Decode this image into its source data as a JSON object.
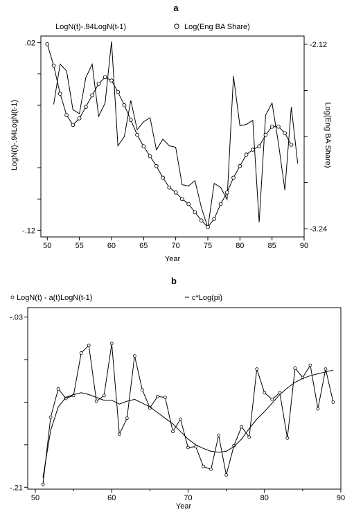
{
  "chart_data": [
    {
      "panel_label": "a",
      "type": "line",
      "xlabel": "Year",
      "ylabel_left": "LogN(t)-.94LogN(t-1)",
      "ylabel_right": "Log(Eng BA Share)",
      "xlim": [
        49,
        90
      ],
      "ylim_left": [
        -0.125,
        0.025
      ],
      "ylim_right": [
        -3.29,
        -2.07
      ],
      "x_ticks": [
        "50",
        "55",
        "60",
        "65",
        "70",
        "75",
        "80",
        "85",
        "90"
      ],
      "y_ticks_left": [
        ".02",
        "-.12"
      ],
      "y_ticks_right": [
        "-2.12",
        "-3.24"
      ],
      "legend": {
        "placement": "top",
        "entries": [
          "LogN(t)-.94LogN(t-1)",
          "Log(Eng BA Share)"
        ]
      },
      "grid": false,
      "series": [
        {
          "name": "LogN(t)-.94LogN(t-1)",
          "marker": "none",
          "axis": "left",
          "x": [
            51,
            52,
            53,
            54,
            55,
            56,
            57,
            58,
            59,
            60,
            61,
            62,
            63,
            64,
            65,
            66,
            67,
            68,
            69,
            70,
            71,
            72,
            73,
            74,
            75,
            76,
            77,
            78,
            79,
            80,
            81,
            82,
            83,
            84,
            85,
            86,
            87,
            88,
            89
          ],
          "y": [
            -0.026,
            0.004,
            -0.001,
            -0.03,
            -0.033,
            -0.006,
            0.004,
            -0.035,
            -0.025,
            0.021,
            -0.057,
            -0.05,
            -0.023,
            -0.045,
            -0.039,
            -0.036,
            -0.06,
            -0.052,
            -0.057,
            -0.058,
            -0.086,
            -0.087,
            -0.083,
            -0.103,
            -0.118,
            -0.085,
            -0.088,
            -0.097,
            -0.005,
            -0.042,
            -0.041,
            -0.038,
            -0.114,
            -0.034,
            -0.025,
            -0.055,
            -0.09,
            -0.028,
            -0.07
          ]
        },
        {
          "name": "Log(Eng BA Share)",
          "marker": "circle",
          "axis": "right",
          "x": [
            50,
            51,
            52,
            53,
            54,
            55,
            56,
            57,
            58,
            59,
            60,
            61,
            62,
            63,
            64,
            65,
            66,
            67,
            68,
            69,
            70,
            71,
            72,
            73,
            74,
            75,
            76,
            77,
            78,
            79,
            80,
            81,
            82,
            83,
            84,
            85,
            86,
            87,
            88
          ],
          "y": [
            -2.12,
            -2.25,
            -2.42,
            -2.55,
            -2.61,
            -2.57,
            -2.5,
            -2.43,
            -2.36,
            -2.32,
            -2.34,
            -2.41,
            -2.49,
            -2.58,
            -2.67,
            -2.74,
            -2.8,
            -2.86,
            -2.93,
            -2.99,
            -3.02,
            -3.06,
            -3.09,
            -3.14,
            -3.19,
            -3.23,
            -3.18,
            -3.09,
            -3.02,
            -2.93,
            -2.86,
            -2.79,
            -2.76,
            -2.74,
            -2.67,
            -2.62,
            -2.62,
            -2.66,
            -2.73
          ]
        }
      ]
    },
    {
      "panel_label": "b",
      "type": "line",
      "xlabel": "Year",
      "xlim": [
        49,
        90
      ],
      "ylim": [
        -0.212,
        -0.02
      ],
      "x_ticks": [
        "50",
        "60",
        "70",
        "80",
        "90"
      ],
      "y_ticks": [
        "-.03",
        "-.21"
      ],
      "legend": {
        "placement": "top",
        "entries": [
          "LogN(t) - a(t)LogN(t-1)",
          "c*Log(pi)"
        ]
      },
      "grid": false,
      "series": [
        {
          "name": "LogN(t) - a(t)LogN(t-1)",
          "marker": "circle",
          "x": [
            51,
            52,
            53,
            54,
            55,
            56,
            57,
            58,
            59,
            60,
            61,
            62,
            63,
            64,
            65,
            66,
            67,
            68,
            69,
            70,
            71,
            72,
            73,
            74,
            75,
            76,
            77,
            78,
            79,
            80,
            81,
            82,
            83,
            84,
            85,
            86,
            87,
            88,
            89
          ],
          "y": [
            -0.207,
            -0.136,
            -0.106,
            -0.116,
            -0.113,
            -0.068,
            -0.06,
            -0.119,
            -0.113,
            -0.058,
            -0.154,
            -0.137,
            -0.071,
            -0.107,
            -0.126,
            -0.114,
            -0.115,
            -0.151,
            -0.138,
            -0.168,
            -0.167,
            -0.188,
            -0.191,
            -0.155,
            -0.197,
            -0.166,
            -0.146,
            -0.157,
            -0.085,
            -0.11,
            -0.117,
            -0.11,
            -0.158,
            -0.084,
            -0.094,
            -0.081,
            -0.127,
            -0.085,
            -0.12
          ]
        },
        {
          "name": "c*Log(pi)",
          "marker": "none",
          "x": [
            51,
            52,
            53,
            54,
            55,
            56,
            57,
            58,
            59,
            60,
            61,
            62,
            63,
            64,
            65,
            66,
            67,
            68,
            69,
            70,
            71,
            72,
            73,
            74,
            75,
            76,
            77,
            78,
            79,
            80,
            81,
            82,
            83,
            84,
            85,
            86,
            87,
            88,
            89
          ],
          "y": [
            -0.2,
            -0.15,
            -0.125,
            -0.115,
            -0.112,
            -0.11,
            -0.112,
            -0.115,
            -0.118,
            -0.118,
            -0.122,
            -0.119,
            -0.117,
            -0.121,
            -0.125,
            -0.131,
            -0.137,
            -0.143,
            -0.151,
            -0.159,
            -0.165,
            -0.169,
            -0.172,
            -0.173,
            -0.172,
            -0.167,
            -0.159,
            -0.148,
            -0.138,
            -0.13,
            -0.121,
            -0.112,
            -0.105,
            -0.099,
            -0.095,
            -0.092,
            -0.09,
            -0.088,
            -0.086
          ]
        }
      ]
    }
  ]
}
